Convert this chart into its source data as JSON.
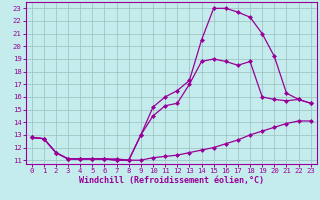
{
  "bg_color": "#c5ecec",
  "line_color": "#990099",
  "xlim": [
    -0.5,
    23.5
  ],
  "ylim": [
    10.7,
    23.5
  ],
  "xticks": [
    0,
    1,
    2,
    3,
    4,
    5,
    6,
    7,
    8,
    9,
    10,
    11,
    12,
    13,
    14,
    15,
    16,
    17,
    18,
    19,
    20,
    21,
    22,
    23
  ],
  "yticks": [
    11,
    12,
    13,
    14,
    15,
    16,
    17,
    18,
    19,
    20,
    21,
    22,
    23
  ],
  "line1_x": [
    0,
    1,
    2,
    3,
    4,
    5,
    6,
    7,
    8,
    9,
    10,
    11,
    12,
    13,
    14,
    15,
    16,
    17,
    18,
    19,
    20,
    21,
    22,
    23
  ],
  "line1_y": [
    12.8,
    12.7,
    11.6,
    11.1,
    11.1,
    11.1,
    11.1,
    11.1,
    11.0,
    11.0,
    11.2,
    11.3,
    11.4,
    11.6,
    11.8,
    12.0,
    12.3,
    12.6,
    13.0,
    13.3,
    13.6,
    13.9,
    14.1,
    14.1
  ],
  "line2_x": [
    0,
    1,
    2,
    3,
    4,
    5,
    6,
    7,
    8,
    9,
    10,
    11,
    12,
    13,
    14,
    15,
    16,
    17,
    18,
    19,
    20,
    21,
    22,
    23
  ],
  "line2_y": [
    12.8,
    12.7,
    11.6,
    11.1,
    11.1,
    11.1,
    11.1,
    11.0,
    11.0,
    13.0,
    14.5,
    15.3,
    15.5,
    17.0,
    18.8,
    19.0,
    18.8,
    18.5,
    18.8,
    16.0,
    15.8,
    15.7,
    15.8,
    15.5
  ],
  "line3_x": [
    0,
    1,
    2,
    3,
    4,
    5,
    6,
    7,
    8,
    9,
    10,
    11,
    12,
    13,
    14,
    15,
    16,
    17,
    18,
    19,
    20,
    21,
    22,
    23
  ],
  "line3_y": [
    12.8,
    12.7,
    11.6,
    11.1,
    11.1,
    11.1,
    11.1,
    11.0,
    11.0,
    13.0,
    15.2,
    16.0,
    16.5,
    17.3,
    20.5,
    23.0,
    23.0,
    22.7,
    22.3,
    21.0,
    19.2,
    16.3,
    15.8,
    15.5
  ],
  "xlabel": "Windchill (Refroidissement éolien,°C)",
  "tick_fontsize": 5.2,
  "label_fontsize": 6.0,
  "marker": "D",
  "markersize": 2.0,
  "linewidth": 0.9,
  "grid_color": "#9bbfbf",
  "grid_lw": 0.5
}
